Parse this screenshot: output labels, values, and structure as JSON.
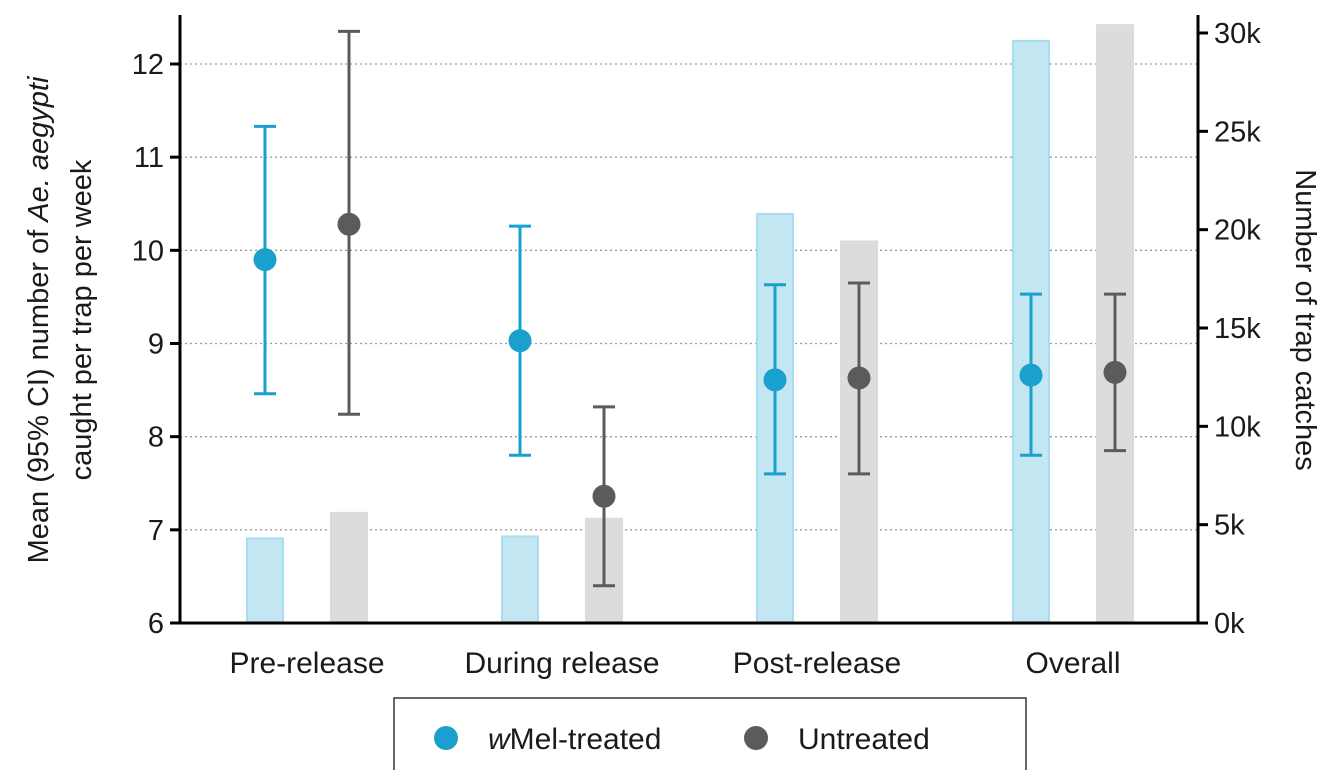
{
  "chart_data": {
    "type": "bar",
    "categories": [
      "Pre-release",
      "During release",
      "Post-release",
      "Overall"
    ],
    "y_left": {
      "label_parts": [
        {
          "line": 1,
          "text": "Mean (95% CI) number of ",
          "italic": false
        },
        {
          "line": 1,
          "text": "Ae. aegypti",
          "italic": true
        },
        {
          "line": 2,
          "text": "caught per trap per week",
          "italic": false
        }
      ],
      "lim": [
        6,
        12.5
      ],
      "ticks": [
        6,
        7,
        8,
        9,
        10,
        11,
        12
      ],
      "tick_labels": [
        "6",
        "7",
        "8",
        "9",
        "10",
        "11",
        "12"
      ]
    },
    "y_right": {
      "label": "Number of trap catches",
      "lim": [
        0,
        31000
      ],
      "ticks": [
        0,
        5000,
        10000,
        15000,
        20000,
        25000,
        30000
      ],
      "tick_labels": [
        "0k",
        "5k",
        "10k",
        "15k",
        "20k",
        "25k",
        "30k"
      ]
    },
    "grid": "horizontal dotted",
    "legend_position": "bottom",
    "series": [
      {
        "name_parts": [
          {
            "text": "w",
            "italic": true
          },
          {
            "text": "Mel-treated",
            "italic": false
          }
        ],
        "color": "#1aa0cc",
        "bar_color": "#c3e6f2",
        "bar_edge": "#a9dcee",
        "bar_values": [
          4300,
          4400,
          20800,
          29600
        ],
        "mean": [
          9.9,
          9.03,
          8.61,
          8.66
        ],
        "ci_low": [
          8.46,
          7.8,
          7.6,
          7.8
        ],
        "ci_high": [
          11.33,
          10.26,
          9.63,
          9.53
        ]
      },
      {
        "name_parts": [
          {
            "text": "Untreated",
            "italic": false
          }
        ],
        "color": "#5b5b5b",
        "bar_color": "#dcdcdc",
        "bar_edge": "#dcdcdc",
        "bar_values": [
          5600,
          5300,
          19400,
          30400
        ],
        "mean": [
          10.28,
          7.36,
          8.63,
          8.69
        ],
        "ci_low": [
          8.24,
          6.4,
          7.6,
          7.85
        ],
        "ci_high": [
          12.35,
          8.32,
          9.65,
          9.53
        ]
      }
    ]
  }
}
